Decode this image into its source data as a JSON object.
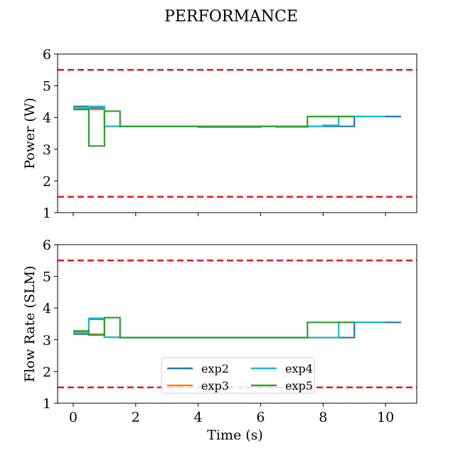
{
  "figure": {
    "title": "PERFORMANCE"
  },
  "chart_data": [
    {
      "type": "line",
      "step": true,
      "ylabel": "Power (W)",
      "xlabel": "",
      "xlim": [
        -0.5,
        11.0
      ],
      "ylim": [
        1,
        6
      ],
      "yticks": [
        "1",
        "2",
        "3",
        "4",
        "5",
        "6"
      ],
      "xticks": [],
      "thresholds": [
        {
          "y": 5.5,
          "color": "#e41a1c"
        },
        {
          "y": 1.5,
          "color": "#e41a1c"
        }
      ],
      "series": [
        {
          "name": "exp2",
          "color": "#1f77b4",
          "x": [
            0,
            0.5,
            0.5,
            1.0,
            1.0,
            1.5,
            1.5,
            4.0,
            4.0,
            6.0,
            6.0,
            7.5,
            7.5,
            8.5,
            8.5,
            9.0,
            9.0,
            10.5
          ],
          "y": [
            4.35,
            4.35,
            4.3,
            4.3,
            3.72,
            3.72,
            3.72,
            3.72,
            3.7,
            3.7,
            3.72,
            3.72,
            3.72,
            3.72,
            3.72,
            3.72,
            4.03,
            4.03
          ]
        },
        {
          "name": "exp3",
          "color": "#ff7f0e",
          "x": [
            0,
            0.5,
            0.5,
            1.0,
            1.0,
            1.5,
            1.5,
            6.5,
            6.5,
            7.5,
            7.5,
            8.0,
            8.0,
            8.5
          ],
          "y": [
            4.3,
            4.3,
            4.25,
            4.25,
            3.72,
            3.72,
            3.72,
            3.72,
            3.7,
            3.7,
            3.72,
            3.72,
            3.75,
            3.75
          ]
        },
        {
          "name": "exp4",
          "color": "#17becf",
          "x": [
            0,
            0.5,
            0.5,
            1.0,
            1.0,
            1.5,
            1.5,
            4.0,
            4.0,
            6.0,
            6.0,
            7.5,
            7.5,
            8.0,
            8.0,
            8.5,
            8.5,
            10.0
          ],
          "y": [
            4.28,
            4.28,
            4.35,
            4.35,
            3.72,
            3.72,
            3.72,
            3.72,
            3.7,
            3.7,
            3.72,
            3.72,
            3.72,
            3.72,
            3.75,
            3.75,
            4.03,
            4.03
          ]
        },
        {
          "name": "exp5",
          "color": "#2ca02c",
          "x": [
            0,
            0.5,
            0.5,
            1.0,
            1.0,
            1.5,
            1.5,
            7.5,
            7.5,
            9.0
          ],
          "y": [
            4.25,
            4.25,
            3.1,
            3.1,
            4.2,
            4.2,
            3.72,
            3.72,
            4.03,
            4.03
          ]
        }
      ]
    },
    {
      "type": "line",
      "step": true,
      "ylabel": "Flow Rate (SLM)",
      "xlabel": "Time (s)",
      "xlim": [
        -0.5,
        11.0
      ],
      "ylim": [
        1,
        6
      ],
      "yticks": [
        "1",
        "2",
        "3",
        "4",
        "5",
        "6"
      ],
      "xticks": [
        "0",
        "2",
        "4",
        "6",
        "8",
        "10"
      ],
      "thresholds": [
        {
          "y": 5.5,
          "color": "#e41a1c"
        },
        {
          "y": 1.5,
          "color": "#e41a1c"
        }
      ],
      "legend": {
        "placement": "lower-center",
        "columns": 2,
        "entries": [
          "exp2",
          "exp3",
          "exp4",
          "exp5"
        ]
      },
      "series": [
        {
          "name": "exp2",
          "color": "#1f77b4",
          "x": [
            0,
            0.5,
            0.5,
            1.0,
            1.0,
            1.5,
            1.5,
            8.5,
            8.5,
            9.0,
            9.0,
            10.5
          ],
          "y": [
            3.18,
            3.18,
            3.65,
            3.65,
            3.08,
            3.08,
            3.07,
            3.07,
            3.07,
            3.07,
            3.55,
            3.55
          ]
        },
        {
          "name": "exp3",
          "color": "#ff7f0e",
          "x": [
            0,
            0.5,
            0.5,
            1.0,
            1.0,
            1.5,
            1.5,
            8.5
          ],
          "y": [
            3.22,
            3.22,
            3.18,
            3.18,
            3.08,
            3.08,
            3.07,
            3.07
          ]
        },
        {
          "name": "exp4",
          "color": "#17becf",
          "x": [
            0,
            0.5,
            0.5,
            1.0,
            1.0,
            1.5,
            1.5,
            8.0,
            8.0,
            8.5,
            8.5,
            10.0
          ],
          "y": [
            3.25,
            3.25,
            3.68,
            3.68,
            3.08,
            3.08,
            3.07,
            3.07,
            3.07,
            3.07,
            3.55,
            3.55
          ]
        },
        {
          "name": "exp5",
          "color": "#2ca02c",
          "x": [
            0,
            0.5,
            0.5,
            1.0,
            1.0,
            1.5,
            1.5,
            7.5,
            7.5,
            9.0
          ],
          "y": [
            3.28,
            3.28,
            3.15,
            3.15,
            3.7,
            3.7,
            3.07,
            3.07,
            3.55,
            3.55
          ]
        }
      ]
    }
  ]
}
